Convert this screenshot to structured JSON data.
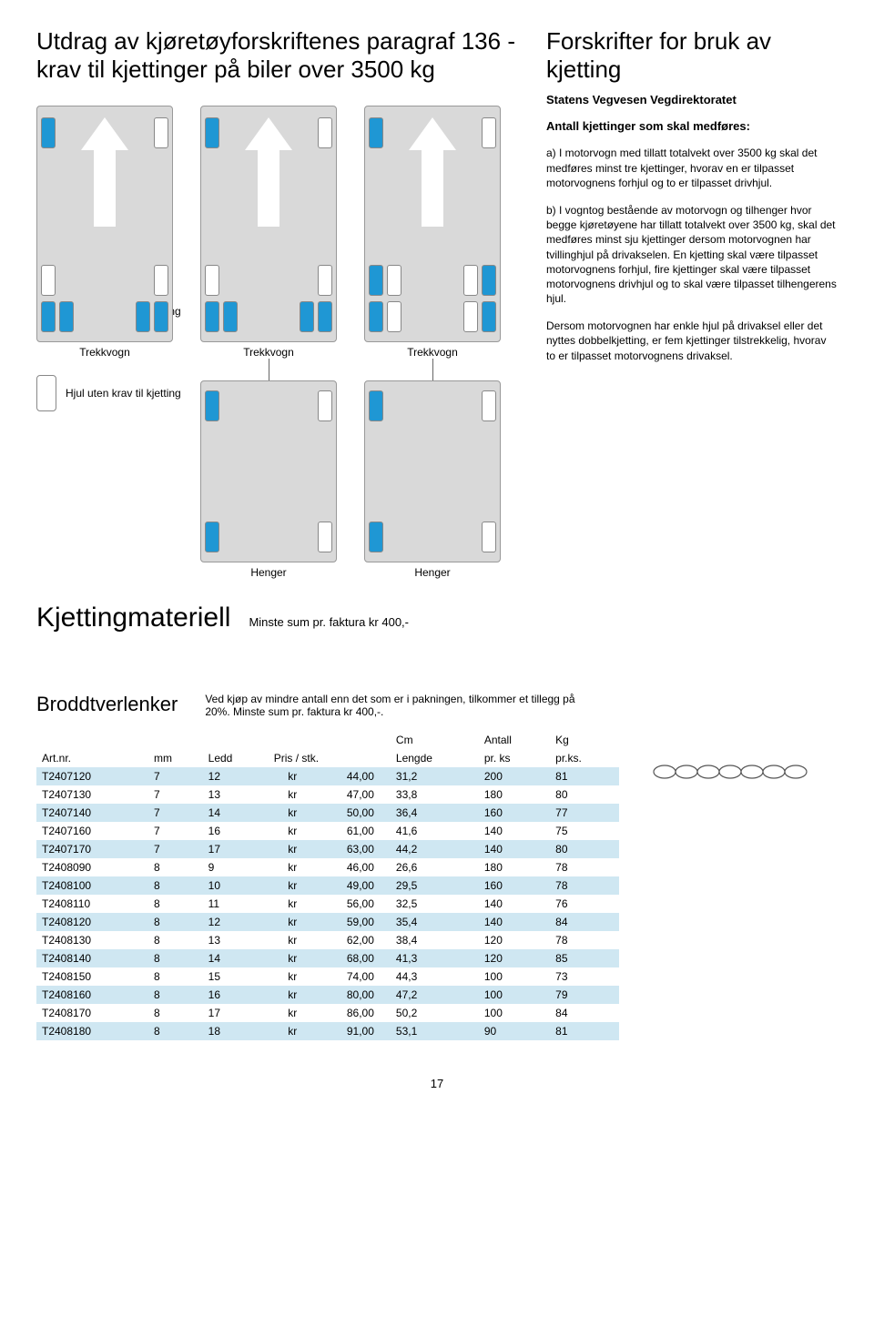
{
  "header": {
    "left_title": "Utdrag av kjøretøyforskriftenes paragraf 136 - krav til kjettinger på biler over 3500 kg",
    "right_title": "Forskrifter for bruk av kjetting",
    "agency": "Statens Vegvesen Vegdirektoratet",
    "intro": "Antall kjettinger som skal medføres:",
    "para_a": "a) I motorvogn med tillatt totalvekt over 3500 kg skal det medføres minst tre kjettinger, hvorav en er tilpasset motorvognens forhjul og to er tilpasset drivhjul.",
    "para_b": "b) I vogntog bestående av motorvogn og tilhenger hvor begge kjøretøyene har tillatt totalvekt over 3500 kg, skal det medføres minst sju kjettinger dersom motorvognen har tvillinghjul på drivakselen. En kjetting skal være tilpasset motorvognens forhjul, fire kjettinger skal være tilpasset motorvognens drivhjul og to skal være tilpasset tilhengerens hjul.",
    "para_c": "Dersom motorvognen har enkle hjul på drivaksel eller det nyttes dobbelkjetting, er fem kjettinger tilstrekkelig, hvorav to er tilpasset motorvognens drivaksel."
  },
  "labels": {
    "trekkvogn": "Trekkvogn",
    "henger": "Henger",
    "legend_blue": "Hjul med krav til kjetting",
    "legend_white": "Hjul uten krav til kjetting"
  },
  "colors": {
    "wheel_blue": "#1f97d4",
    "wheel_white": "#ffffff",
    "vehicle_bg": "#d9d9d9",
    "row_alt": "#cfe7f2"
  },
  "section2": {
    "title": "Kjettingmateriell",
    "subtitle": "Minste sum pr. faktura kr 400,-"
  },
  "table_section": {
    "title": "Broddtverlenker",
    "note": "Ved kjøp av mindre antall enn det som er i pakningen, tilkommer et tillegg på 20%. Minste sum pr. faktura kr 400,-.",
    "columns": [
      "Art.nr.",
      "mm",
      "Ledd",
      "Pris / stk.",
      "Cm Lengde",
      "Antall pr. ks",
      "Kg pr.ks."
    ],
    "col_header_top": [
      "",
      "",
      "",
      "",
      "Cm",
      "Antall",
      "Kg"
    ],
    "col_header_bot": [
      "Art.nr.",
      "mm",
      "Ledd",
      "Pris / stk.",
      "Lengde",
      "pr. ks",
      "pr.ks."
    ],
    "rows": [
      [
        "T2407120",
        "7",
        "12",
        "kr",
        "44,00",
        "31,2",
        "200",
        "81"
      ],
      [
        "T2407130",
        "7",
        "13",
        "kr",
        "47,00",
        "33,8",
        "180",
        "80"
      ],
      [
        "T2407140",
        "7",
        "14",
        "kr",
        "50,00",
        "36,4",
        "160",
        "77"
      ],
      [
        "T2407160",
        "7",
        "16",
        "kr",
        "61,00",
        "41,6",
        "140",
        "75"
      ],
      [
        "T2407170",
        "7",
        "17",
        "kr",
        "63,00",
        "44,2",
        "140",
        "80"
      ],
      [
        "T2408090",
        "8",
        "9",
        "kr",
        "46,00",
        "26,6",
        "180",
        "78"
      ],
      [
        "T2408100",
        "8",
        "10",
        "kr",
        "49,00",
        "29,5",
        "160",
        "78"
      ],
      [
        "T2408110",
        "8",
        "11",
        "kr",
        "56,00",
        "32,5",
        "140",
        "76"
      ],
      [
        "T2408120",
        "8",
        "12",
        "kr",
        "59,00",
        "35,4",
        "140",
        "84"
      ],
      [
        "T2408130",
        "8",
        "13",
        "kr",
        "62,00",
        "38,4",
        "120",
        "78"
      ],
      [
        "T2408140",
        "8",
        "14",
        "kr",
        "68,00",
        "41,3",
        "120",
        "85"
      ],
      [
        "T2408150",
        "8",
        "15",
        "kr",
        "74,00",
        "44,3",
        "100",
        "73"
      ],
      [
        "T2408160",
        "8",
        "16",
        "kr",
        "80,00",
        "47,2",
        "100",
        "79"
      ],
      [
        "T2408170",
        "8",
        "17",
        "kr",
        "86,00",
        "50,2",
        "100",
        "84"
      ],
      [
        "T2408180",
        "8",
        "18",
        "kr",
        "91,00",
        "53,1",
        "90",
        "81"
      ]
    ]
  },
  "page_number": "17"
}
